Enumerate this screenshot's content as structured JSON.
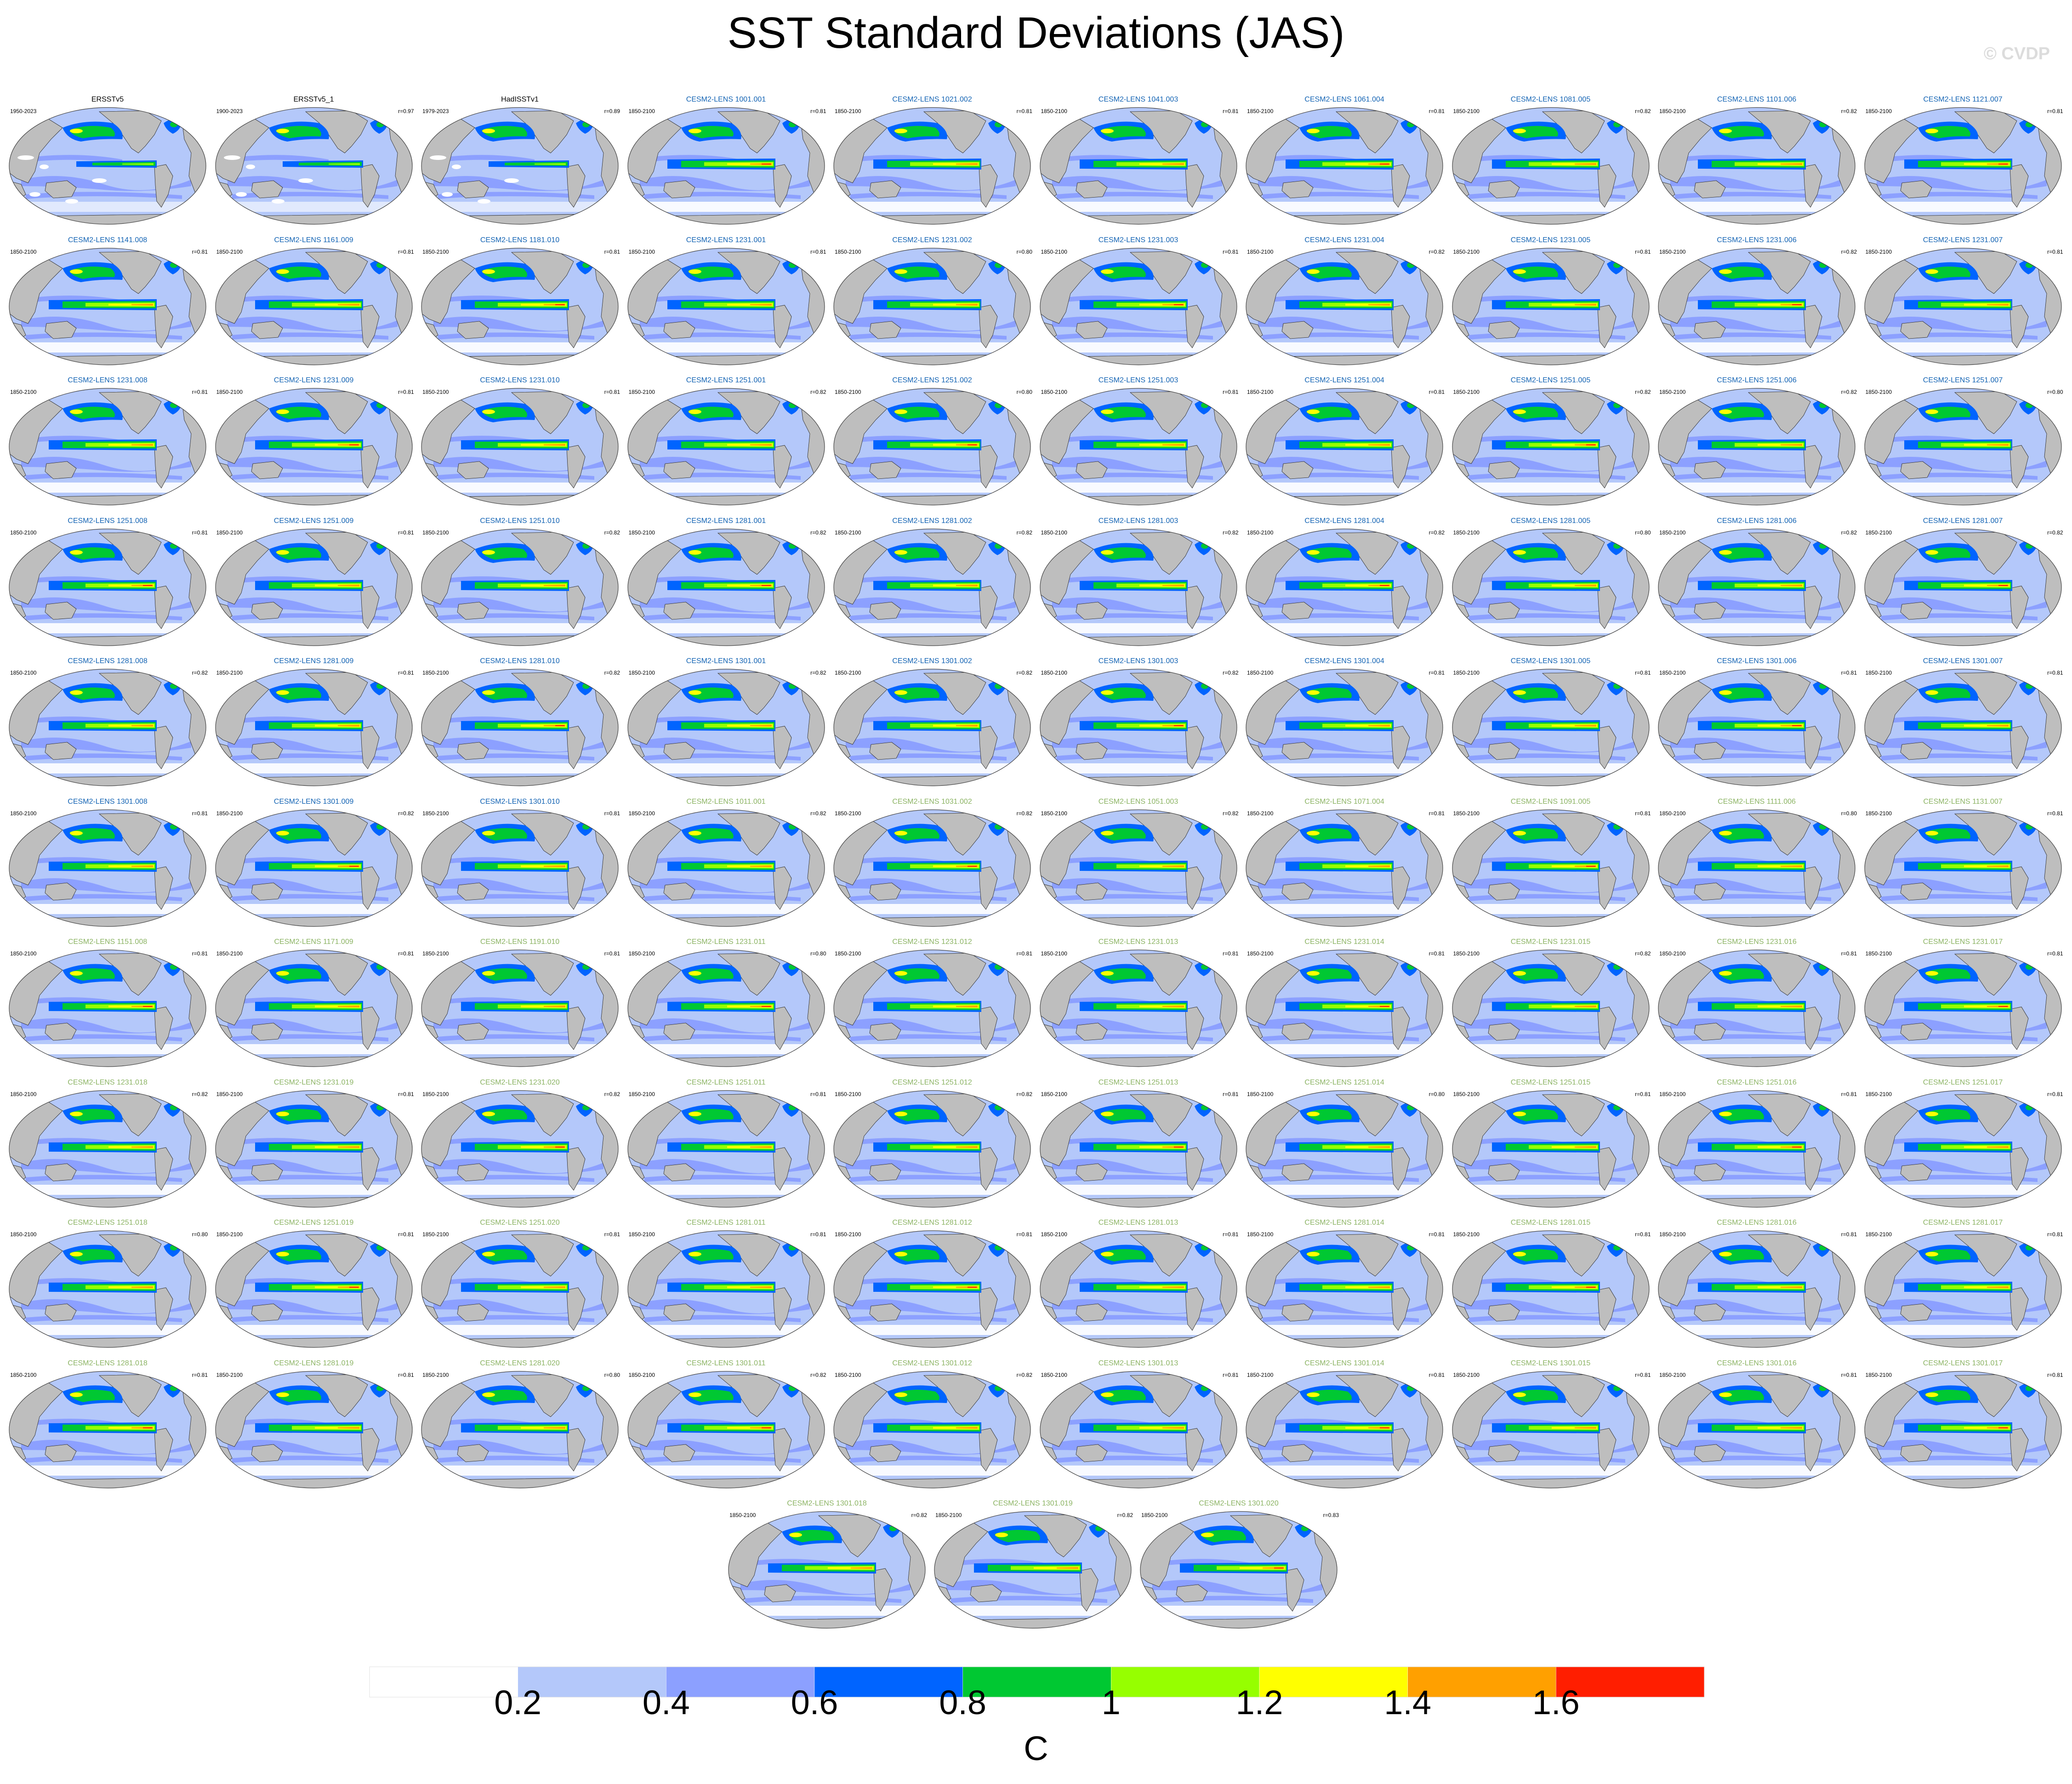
{
  "title": "SST Standard Deviations (JAS)",
  "watermark": "© CVDP",
  "colors": {
    "bins": [
      "#ffffff",
      "#b4c8fa",
      "#8ca0ff",
      "#0064ff",
      "#00c832",
      "#96ff00",
      "#ffff00",
      "#ffa000",
      "#ff1e00"
    ],
    "land": "#bebebe",
    "ocean_base": "#b4c8fa",
    "obs_title": "#000000",
    "model_title_a": "#1464b4",
    "model_title_b": "#8cb464"
  },
  "chart_data": {
    "type": "heatmap",
    "description_kind": "grid of global SST standard deviation maps",
    "colorbar": {
      "levels": [
        0.2,
        0.4,
        0.6,
        0.8,
        1,
        1.2,
        1.4,
        1.6
      ],
      "tick_labels": [
        "0.2",
        "0.4",
        "0.6",
        "0.8",
        "1",
        "1.2",
        "1.4",
        "1.6"
      ],
      "units": "C"
    },
    "panels": [
      {
        "title": "ERSSTv5",
        "period": "1950-2023",
        "r": "",
        "kind": "obs"
      },
      {
        "title": "ERSSTv5_1",
        "period": "1900-2023",
        "r": "r=0.97",
        "kind": "obs"
      },
      {
        "title": "HadISSTv1",
        "period": "1979-2023",
        "r": "r=0.89",
        "kind": "obs"
      },
      {
        "title": "CESM2-LENS 1001.001",
        "period": "1850-2100",
        "r": "r=0.81",
        "kind": "a"
      },
      {
        "title": "CESM2-LENS 1021.002",
        "period": "1850-2100",
        "r": "r=0.81",
        "kind": "a"
      },
      {
        "title": "CESM2-LENS 1041.003",
        "period": "1850-2100",
        "r": "r=0.81",
        "kind": "a"
      },
      {
        "title": "CESM2-LENS 1061.004",
        "period": "1850-2100",
        "r": "r=0.81",
        "kind": "a"
      },
      {
        "title": "CESM2-LENS 1081.005",
        "period": "1850-2100",
        "r": "r=0.82",
        "kind": "a"
      },
      {
        "title": "CESM2-LENS 1101.006",
        "period": "1850-2100",
        "r": "r=0.82",
        "kind": "a"
      },
      {
        "title": "CESM2-LENS 1121.007",
        "period": "1850-2100",
        "r": "r=0.81",
        "kind": "a"
      },
      {
        "title": "CESM2-LENS 1141.008",
        "period": "1850-2100",
        "r": "r=0.81",
        "kind": "a"
      },
      {
        "title": "CESM2-LENS 1161.009",
        "period": "1850-2100",
        "r": "r=0.81",
        "kind": "a"
      },
      {
        "title": "CESM2-LENS 1181.010",
        "period": "1850-2100",
        "r": "r=0.81",
        "kind": "a"
      },
      {
        "title": "CESM2-LENS 1231.001",
        "period": "1850-2100",
        "r": "r=0.81",
        "kind": "a"
      },
      {
        "title": "CESM2-LENS 1231.002",
        "period": "1850-2100",
        "r": "r=0.80",
        "kind": "a"
      },
      {
        "title": "CESM2-LENS 1231.003",
        "period": "1850-2100",
        "r": "r=0.81",
        "kind": "a"
      },
      {
        "title": "CESM2-LENS 1231.004",
        "period": "1850-2100",
        "r": "r=0.82",
        "kind": "a"
      },
      {
        "title": "CESM2-LENS 1231.005",
        "period": "1850-2100",
        "r": "r=0.81",
        "kind": "a"
      },
      {
        "title": "CESM2-LENS 1231.006",
        "period": "1850-2100",
        "r": "r=0.82",
        "kind": "a"
      },
      {
        "title": "CESM2-LENS 1231.007",
        "period": "1850-2100",
        "r": "r=0.81",
        "kind": "a"
      },
      {
        "title": "CESM2-LENS 1231.008",
        "period": "1850-2100",
        "r": "r=0.81",
        "kind": "a"
      },
      {
        "title": "CESM2-LENS 1231.009",
        "period": "1850-2100",
        "r": "r=0.81",
        "kind": "a"
      },
      {
        "title": "CESM2-LENS 1231.010",
        "period": "1850-2100",
        "r": "r=0.81",
        "kind": "a"
      },
      {
        "title": "CESM2-LENS 1251.001",
        "period": "1850-2100",
        "r": "r=0.82",
        "kind": "a"
      },
      {
        "title": "CESM2-LENS 1251.002",
        "period": "1850-2100",
        "r": "r=0.80",
        "kind": "a"
      },
      {
        "title": "CESM2-LENS 1251.003",
        "period": "1850-2100",
        "r": "r=0.81",
        "kind": "a"
      },
      {
        "title": "CESM2-LENS 1251.004",
        "period": "1850-2100",
        "r": "r=0.81",
        "kind": "a"
      },
      {
        "title": "CESM2-LENS 1251.005",
        "period": "1850-2100",
        "r": "r=0.82",
        "kind": "a"
      },
      {
        "title": "CESM2-LENS 1251.006",
        "period": "1850-2100",
        "r": "r=0.82",
        "kind": "a"
      },
      {
        "title": "CESM2-LENS 1251.007",
        "period": "1850-2100",
        "r": "r=0.80",
        "kind": "a"
      },
      {
        "title": "CESM2-LENS 1251.008",
        "period": "1850-2100",
        "r": "r=0.81",
        "kind": "a"
      },
      {
        "title": "CESM2-LENS 1251.009",
        "period": "1850-2100",
        "r": "r=0.81",
        "kind": "a"
      },
      {
        "title": "CESM2-LENS 1251.010",
        "period": "1850-2100",
        "r": "r=0.82",
        "kind": "a"
      },
      {
        "title": "CESM2-LENS 1281.001",
        "period": "1850-2100",
        "r": "r=0.82",
        "kind": "a"
      },
      {
        "title": "CESM2-LENS 1281.002",
        "period": "1850-2100",
        "r": "r=0.82",
        "kind": "a"
      },
      {
        "title": "CESM2-LENS 1281.003",
        "period": "1850-2100",
        "r": "r=0.82",
        "kind": "a"
      },
      {
        "title": "CESM2-LENS 1281.004",
        "period": "1850-2100",
        "r": "r=0.82",
        "kind": "a"
      },
      {
        "title": "CESM2-LENS 1281.005",
        "period": "1850-2100",
        "r": "r=0.80",
        "kind": "a"
      },
      {
        "title": "CESM2-LENS 1281.006",
        "period": "1850-2100",
        "r": "r=0.82",
        "kind": "a"
      },
      {
        "title": "CESM2-LENS 1281.007",
        "period": "1850-2100",
        "r": "r=0.82",
        "kind": "a"
      },
      {
        "title": "CESM2-LENS 1281.008",
        "period": "1850-2100",
        "r": "r=0.82",
        "kind": "a"
      },
      {
        "title": "CESM2-LENS 1281.009",
        "period": "1850-2100",
        "r": "r=0.81",
        "kind": "a"
      },
      {
        "title": "CESM2-LENS 1281.010",
        "period": "1850-2100",
        "r": "r=0.82",
        "kind": "a"
      },
      {
        "title": "CESM2-LENS 1301.001",
        "period": "1850-2100",
        "r": "r=0.82",
        "kind": "a"
      },
      {
        "title": "CESM2-LENS 1301.002",
        "period": "1850-2100",
        "r": "r=0.82",
        "kind": "a"
      },
      {
        "title": "CESM2-LENS 1301.003",
        "period": "1850-2100",
        "r": "r=0.82",
        "kind": "a"
      },
      {
        "title": "CESM2-LENS 1301.004",
        "period": "1850-2100",
        "r": "r=0.81",
        "kind": "a"
      },
      {
        "title": "CESM2-LENS 1301.005",
        "period": "1850-2100",
        "r": "r=0.81",
        "kind": "a"
      },
      {
        "title": "CESM2-LENS 1301.006",
        "period": "1850-2100",
        "r": "r=0.81",
        "kind": "a"
      },
      {
        "title": "CESM2-LENS 1301.007",
        "period": "1850-2100",
        "r": "r=0.81",
        "kind": "a"
      },
      {
        "title": "CESM2-LENS 1301.008",
        "period": "1850-2100",
        "r": "r=0.81",
        "kind": "a"
      },
      {
        "title": "CESM2-LENS 1301.009",
        "period": "1850-2100",
        "r": "r=0.82",
        "kind": "a"
      },
      {
        "title": "CESM2-LENS 1301.010",
        "period": "1850-2100",
        "r": "r=0.81",
        "kind": "a"
      },
      {
        "title": "CESM2-LENS 1011.001",
        "period": "1850-2100",
        "r": "r=0.82",
        "kind": "b"
      },
      {
        "title": "CESM2-LENS 1031.002",
        "period": "1850-2100",
        "r": "r=0.82",
        "kind": "b"
      },
      {
        "title": "CESM2-LENS 1051.003",
        "period": "1850-2100",
        "r": "r=0.82",
        "kind": "b"
      },
      {
        "title": "CESM2-LENS 1071.004",
        "period": "1850-2100",
        "r": "r=0.81",
        "kind": "b"
      },
      {
        "title": "CESM2-LENS 1091.005",
        "period": "1850-2100",
        "r": "r=0.81",
        "kind": "b"
      },
      {
        "title": "CESM2-LENS 1111.006",
        "period": "1850-2100",
        "r": "r=0.80",
        "kind": "b"
      },
      {
        "title": "CESM2-LENS 1131.007",
        "period": "1850-2100",
        "r": "r=0.81",
        "kind": "b"
      },
      {
        "title": "CESM2-LENS 1151.008",
        "period": "1850-2100",
        "r": "r=0.81",
        "kind": "b"
      },
      {
        "title": "CESM2-LENS 1171.009",
        "period": "1850-2100",
        "r": "r=0.81",
        "kind": "b"
      },
      {
        "title": "CESM2-LENS 1191.010",
        "period": "1850-2100",
        "r": "r=0.81",
        "kind": "b"
      },
      {
        "title": "CESM2-LENS 1231.011",
        "period": "1850-2100",
        "r": "r=0.80",
        "kind": "b"
      },
      {
        "title": "CESM2-LENS 1231.012",
        "period": "1850-2100",
        "r": "r=0.81",
        "kind": "b"
      },
      {
        "title": "CESM2-LENS 1231.013",
        "period": "1850-2100",
        "r": "r=0.81",
        "kind": "b"
      },
      {
        "title": "CESM2-LENS 1231.014",
        "period": "1850-2100",
        "r": "r=0.81",
        "kind": "b"
      },
      {
        "title": "CESM2-LENS 1231.015",
        "period": "1850-2100",
        "r": "r=0.82",
        "kind": "b"
      },
      {
        "title": "CESM2-LENS 1231.016",
        "period": "1850-2100",
        "r": "r=0.81",
        "kind": "b"
      },
      {
        "title": "CESM2-LENS 1231.017",
        "period": "1850-2100",
        "r": "r=0.81",
        "kind": "b"
      },
      {
        "title": "CESM2-LENS 1231.018",
        "period": "1850-2100",
        "r": "r=0.82",
        "kind": "b"
      },
      {
        "title": "CESM2-LENS 1231.019",
        "period": "1850-2100",
        "r": "r=0.81",
        "kind": "b"
      },
      {
        "title": "CESM2-LENS 1231.020",
        "period": "1850-2100",
        "r": "r=0.82",
        "kind": "b"
      },
      {
        "title": "CESM2-LENS 1251.011",
        "period": "1850-2100",
        "r": "r=0.81",
        "kind": "b"
      },
      {
        "title": "CESM2-LENS 1251.012",
        "period": "1850-2100",
        "r": "r=0.82",
        "kind": "b"
      },
      {
        "title": "CESM2-LENS 1251.013",
        "period": "1850-2100",
        "r": "r=0.81",
        "kind": "b"
      },
      {
        "title": "CESM2-LENS 1251.014",
        "period": "1850-2100",
        "r": "r=0.80",
        "kind": "b"
      },
      {
        "title": "CESM2-LENS 1251.015",
        "period": "1850-2100",
        "r": "r=0.81",
        "kind": "b"
      },
      {
        "title": "CESM2-LENS 1251.016",
        "period": "1850-2100",
        "r": "r=0.81",
        "kind": "b"
      },
      {
        "title": "CESM2-LENS 1251.017",
        "period": "1850-2100",
        "r": "r=0.81",
        "kind": "b"
      },
      {
        "title": "CESM2-LENS 1251.018",
        "period": "1850-2100",
        "r": "r=0.80",
        "kind": "b"
      },
      {
        "title": "CESM2-LENS 1251.019",
        "period": "1850-2100",
        "r": "r=0.81",
        "kind": "b"
      },
      {
        "title": "CESM2-LENS 1251.020",
        "period": "1850-2100",
        "r": "r=0.81",
        "kind": "b"
      },
      {
        "title": "CESM2-LENS 1281.011",
        "period": "1850-2100",
        "r": "r=0.81",
        "kind": "b"
      },
      {
        "title": "CESM2-LENS 1281.012",
        "period": "1850-2100",
        "r": "r=0.81",
        "kind": "b"
      },
      {
        "title": "CESM2-LENS 1281.013",
        "period": "1850-2100",
        "r": "r=0.81",
        "kind": "b"
      },
      {
        "title": "CESM2-LENS 1281.014",
        "period": "1850-2100",
        "r": "r=0.81",
        "kind": "b"
      },
      {
        "title": "CESM2-LENS 1281.015",
        "period": "1850-2100",
        "r": "r=0.81",
        "kind": "b"
      },
      {
        "title": "CESM2-LENS 1281.016",
        "period": "1850-2100",
        "r": "r=0.81",
        "kind": "b"
      },
      {
        "title": "CESM2-LENS 1281.017",
        "period": "1850-2100",
        "r": "r=0.81",
        "kind": "b"
      },
      {
        "title": "CESM2-LENS 1281.018",
        "period": "1850-2100",
        "r": "r=0.81",
        "kind": "b"
      },
      {
        "title": "CESM2-LENS 1281.019",
        "period": "1850-2100",
        "r": "r=0.81",
        "kind": "b"
      },
      {
        "title": "CESM2-LENS 1281.020",
        "period": "1850-2100",
        "r": "r=0.80",
        "kind": "b"
      },
      {
        "title": "CESM2-LENS 1301.011",
        "period": "1850-2100",
        "r": "r=0.82",
        "kind": "b"
      },
      {
        "title": "CESM2-LENS 1301.012",
        "period": "1850-2100",
        "r": "r=0.82",
        "kind": "b"
      },
      {
        "title": "CESM2-LENS 1301.013",
        "period": "1850-2100",
        "r": "r=0.81",
        "kind": "b"
      },
      {
        "title": "CESM2-LENS 1301.014",
        "period": "1850-2100",
        "r": "r=0.81",
        "kind": "b"
      },
      {
        "title": "CESM2-LENS 1301.015",
        "period": "1850-2100",
        "r": "r=0.81",
        "kind": "b"
      },
      {
        "title": "CESM2-LENS 1301.016",
        "period": "1850-2100",
        "r": "r=0.81",
        "kind": "b"
      },
      {
        "title": "CESM2-LENS 1301.017",
        "period": "1850-2100",
        "r": "r=0.81",
        "kind": "b"
      },
      {
        "title": "CESM2-LENS 1301.018",
        "period": "1850-2100",
        "r": "r=0.82",
        "kind": "b"
      },
      {
        "title": "CESM2-LENS 1301.019",
        "period": "1850-2100",
        "r": "r=0.82",
        "kind": "b"
      },
      {
        "title": "CESM2-LENS 1301.020",
        "period": "1850-2100",
        "r": "r=0.83",
        "kind": "b"
      }
    ]
  }
}
